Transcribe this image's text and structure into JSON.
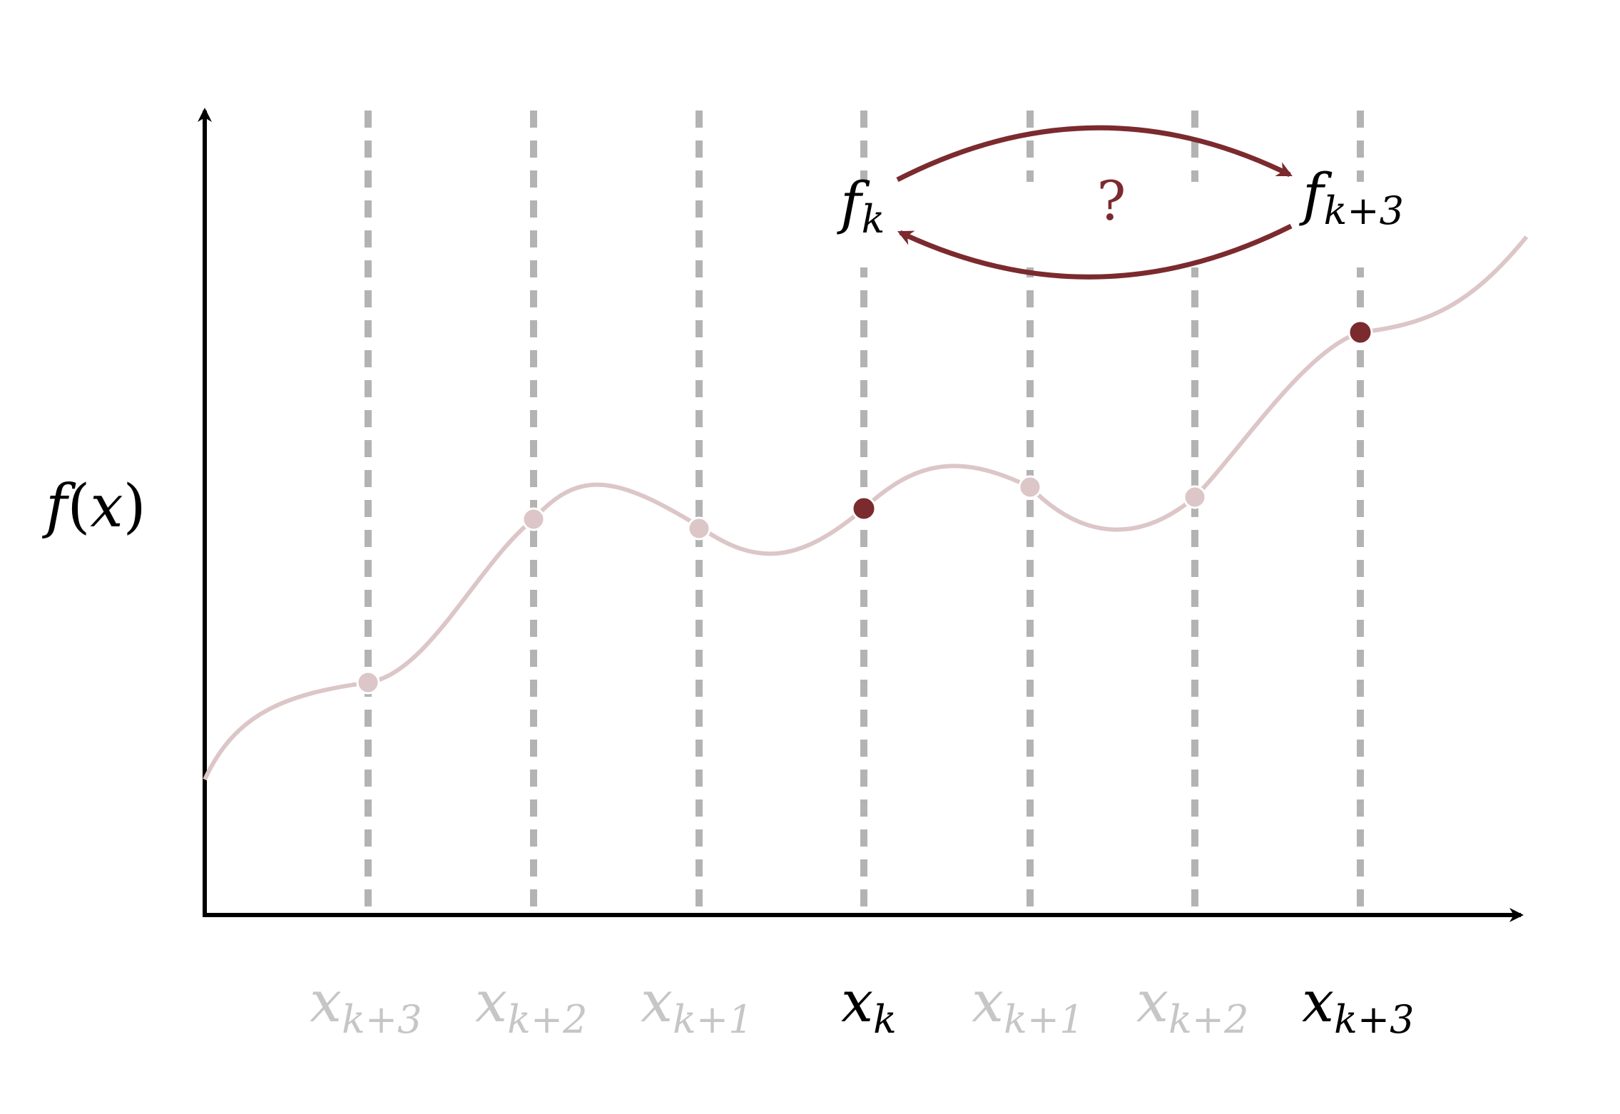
{
  "diagram": {
    "y_axis_label": {
      "func": "f",
      "open": "(",
      "var": "x",
      "close": ")"
    },
    "x_labels": [
      {
        "base": "x",
        "sub": "k+3",
        "highlight": false
      },
      {
        "base": "x",
        "sub": "k+2",
        "highlight": false
      },
      {
        "base": "x",
        "sub": "k+1",
        "highlight": false
      },
      {
        "base": "x",
        "sub": "k",
        "highlight": true
      },
      {
        "base": "x",
        "sub": "k+1",
        "highlight": false
      },
      {
        "base": "x",
        "sub": "k+2",
        "highlight": false
      },
      {
        "base": "x",
        "sub": "k+3",
        "highlight": true
      }
    ],
    "point_values": [
      0.38,
      0.75,
      0.73,
      0.77,
      0.79,
      0.76,
      1.14
    ],
    "highlighted_points": [
      3,
      6
    ],
    "f_left": {
      "base": "f",
      "sub": "k"
    },
    "f_right": {
      "base": "f",
      "sub": "k+3"
    },
    "question_mark": "?",
    "colors": {
      "accent": "#7b2a2e",
      "curve": "#dcc6c7",
      "faded_point": "#dcc6c7",
      "gridline": "#b3b3b3",
      "faded_text": "#c6c6c6",
      "axis": "#000000",
      "text": "#000000"
    }
  }
}
